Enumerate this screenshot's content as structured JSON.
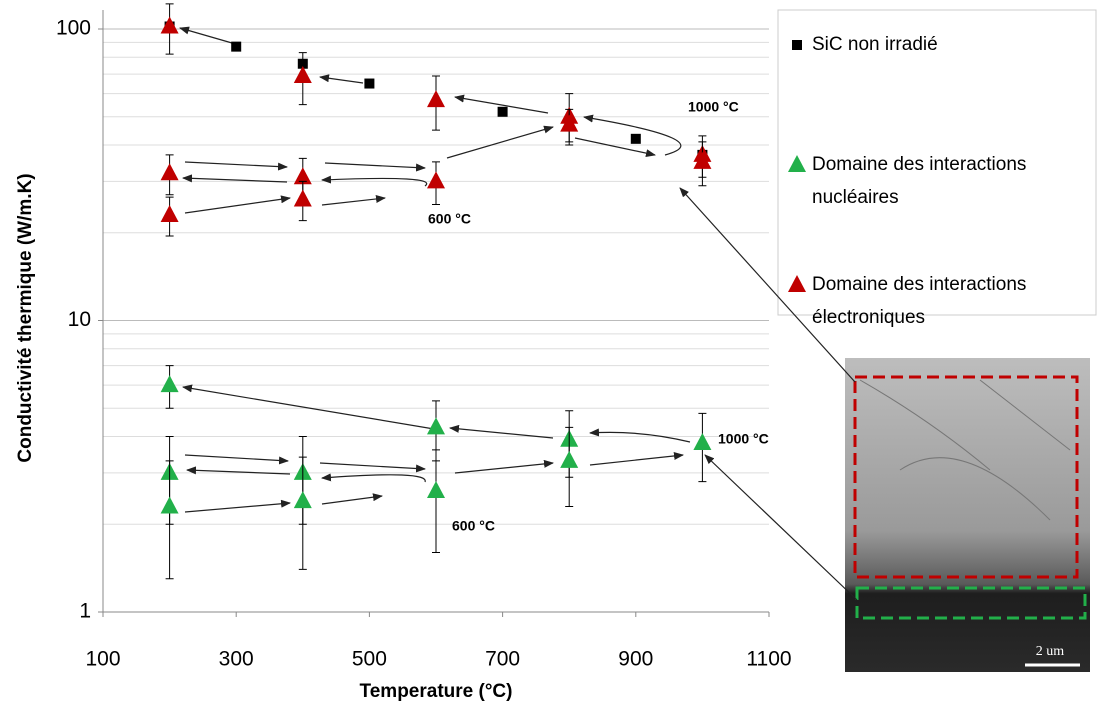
{
  "chart_data": {
    "type": "scatter",
    "xlabel": "Temperature (°C)",
    "ylabel": "Conductivité thermique (W/m.K)",
    "xlim": [
      100,
      1100
    ],
    "xticks": [
      100,
      300,
      500,
      700,
      900,
      1100
    ],
    "ylim": [
      1,
      100
    ],
    "yticks": [
      1,
      10,
      100
    ],
    "yscale": "log",
    "grid": true,
    "legend": "right",
    "series": [
      {
        "name": "SiC non irradié",
        "color": "#000000",
        "marker": "square",
        "x": [
          200,
          300,
          400,
          500,
          700,
          900,
          1000
        ],
        "values": [
          102,
          87,
          76,
          65,
          52,
          42,
          37
        ]
      },
      {
        "name": "Domaine des interactions nucléaires",
        "color": "#22b04a",
        "marker": "triangle",
        "x": [
          200,
          200,
          200,
          400,
          400,
          600,
          600,
          800,
          800,
          1000
        ],
        "values": [
          6.0,
          3.0,
          2.3,
          3.0,
          2.4,
          4.3,
          2.6,
          3.9,
          3.3,
          3.8
        ],
        "errors": [
          1,
          1,
          1,
          1,
          1,
          1,
          1,
          1,
          1,
          1
        ]
      },
      {
        "name": "Domaine des interactions électroniques",
        "color": "#c00000",
        "marker": "triangle",
        "x": [
          200,
          200,
          200,
          400,
          400,
          400,
          600,
          600,
          800,
          800,
          1000,
          1000
        ],
        "values": [
          102,
          32,
          23,
          69,
          31,
          26,
          57,
          30,
          50,
          47,
          37,
          35
        ],
        "errors": [
          20,
          5,
          3.5,
          14,
          5,
          4,
          12,
          5,
          10,
          6,
          6,
          6
        ]
      }
    ],
    "annotations": [
      "1000 °C",
      "600 °C",
      "1000 °C",
      "600 °C"
    ],
    "inset_label": "2 um"
  }
}
